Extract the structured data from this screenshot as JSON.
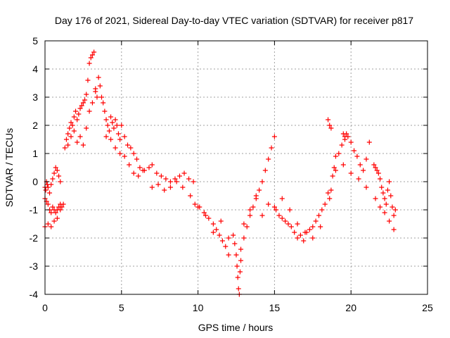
{
  "chart_data": {
    "type": "scatter",
    "title": "Day 176 of 2021, Sidereal Day-to-day VTEC variation (SDTVAR) for receiver p817",
    "xlabel": "GPS time / hours",
    "ylabel": "SDTVAR / TECUs",
    "xlim": [
      0,
      25
    ],
    "ylim": [
      -4,
      5
    ],
    "xticks": [
      0,
      5,
      10,
      15,
      20,
      25
    ],
    "yticks": [
      -4,
      -3,
      -2,
      -1,
      0,
      1,
      2,
      3,
      4,
      5
    ],
    "xtick_labels": [
      "0",
      "5",
      "10",
      "15",
      "20",
      "25"
    ],
    "ytick_labels": [
      "-4",
      "-3",
      "-2",
      "-1",
      "0",
      "1",
      "2",
      "3",
      "4",
      "5"
    ],
    "grid": true,
    "marker": "+",
    "color": "#ff0000",
    "series": [
      {
        "name": "p817",
        "x": [
          0.0,
          0.05,
          0.1,
          0.15,
          0.2,
          0.3,
          0.4,
          0.5,
          0.6,
          0.7,
          0.8,
          0.9,
          1.0,
          0.0,
          0.1,
          0.2,
          0.3,
          0.4,
          0.5,
          0.6,
          0.7,
          0.8,
          0.9,
          1.0,
          1.1,
          0.0,
          0.2,
          0.4,
          0.6,
          0.8,
          1.0,
          1.2,
          1.3,
          1.4,
          1.5,
          1.6,
          1.7,
          1.8,
          1.9,
          2.0,
          2.1,
          2.2,
          2.3,
          2.4,
          2.5,
          2.6,
          2.7,
          2.8,
          2.9,
          3.0,
          3.1,
          3.2,
          3.3,
          3.4,
          1.5,
          1.7,
          1.9,
          2.1,
          2.3,
          2.5,
          2.7,
          2.9,
          3.1,
          3.3,
          3.5,
          3.6,
          3.7,
          3.8,
          3.9,
          4.0,
          4.1,
          4.2,
          4.3,
          4.4,
          4.5,
          4.6,
          4.7,
          4.8,
          4.9,
          5.0,
          5.2,
          5.4,
          5.6,
          5.8,
          6.0,
          6.2,
          6.4,
          4.0,
          4.3,
          4.6,
          4.9,
          5.2,
          5.5,
          5.8,
          6.1,
          6.5,
          6.8,
          7.0,
          7.3,
          7.6,
          7.9,
          8.2,
          8.5,
          8.8,
          9.1,
          9.4,
          9.7,
          7.0,
          7.4,
          7.8,
          8.2,
          8.6,
          9.0,
          9.5,
          9.8,
          10.1,
          10.4,
          10.7,
          11.0,
          11.2,
          11.4,
          11.6,
          11.8,
          12.0,
          10.0,
          10.5,
          11.0,
          11.5,
          12.0,
          12.3,
          12.4,
          12.5,
          12.55,
          12.6,
          12.65,
          12.7,
          12.75,
          12.8,
          12.8,
          13.0,
          13.2,
          13.4,
          13.6,
          13.8,
          14.0,
          14.2,
          14.4,
          14.6,
          14.8,
          15.0,
          13.0,
          13.4,
          13.8,
          14.2,
          14.6,
          15.0,
          15.1,
          15.3,
          15.5,
          15.7,
          15.9,
          16.1,
          16.3,
          16.5,
          16.7,
          16.9,
          17.1,
          17.3,
          17.5,
          17.7,
          17.9,
          18.1,
          18.3,
          18.5,
          15.5,
          16.0,
          16.5,
          17.0,
          17.5,
          18.0,
          18.6,
          18.7,
          18.8,
          18.9,
          19.0,
          19.2,
          19.4,
          19.6,
          19.8,
          20.0,
          20.2,
          20.4,
          20.6,
          20.8,
          21.0,
          21.2,
          18.5,
          18.6,
          18.7,
          19.5,
          19.6,
          19.7,
          19.0,
          19.5,
          20.0,
          20.5,
          21.0,
          21.5,
          21.6,
          21.7,
          21.8,
          21.9,
          22.0,
          22.1,
          22.2,
          22.3,
          22.4,
          22.5,
          22.6,
          22.7,
          22.8,
          22.9,
          21.6,
          21.9,
          22.2,
          22.5,
          22.8
        ],
        "y": [
          -0.2,
          -0.3,
          0.0,
          -0.1,
          -0.2,
          -0.4,
          -0.1,
          0.1,
          0.3,
          0.5,
          0.4,
          0.2,
          0.0,
          -0.6,
          -0.7,
          -0.8,
          -1.0,
          -1.1,
          -0.9,
          -1.0,
          -1.1,
          -1.0,
          -0.9,
          -0.8,
          -0.9,
          -1.6,
          -1.5,
          -1.6,
          -1.4,
          -1.3,
          -1.0,
          -0.8,
          1.2,
          1.5,
          1.7,
          1.9,
          2.1,
          2.0,
          2.3,
          2.5,
          2.2,
          2.4,
          2.6,
          2.7,
          2.8,
          2.9,
          3.1,
          3.6,
          4.2,
          4.4,
          4.5,
          4.6,
          3.3,
          3.0,
          1.3,
          1.6,
          1.8,
          1.4,
          1.6,
          1.3,
          1.9,
          2.5,
          2.8,
          3.2,
          3.7,
          3.4,
          3.0,
          2.8,
          2.5,
          2.2,
          2.0,
          1.8,
          2.3,
          2.1,
          1.9,
          2.2,
          2.0,
          1.7,
          1.5,
          2.0,
          1.6,
          1.3,
          1.2,
          1.0,
          0.8,
          0.5,
          0.4,
          1.6,
          1.5,
          1.2,
          1.0,
          0.9,
          0.6,
          0.3,
          0.2,
          0.4,
          0.5,
          0.6,
          0.3,
          0.2,
          0.1,
          0.0,
          0.1,
          0.2,
          0.3,
          0.1,
          0.0,
          -0.2,
          -0.1,
          -0.3,
          -0.2,
          0.0,
          -0.2,
          -0.5,
          -0.8,
          -0.9,
          -1.1,
          -1.3,
          -1.5,
          -1.7,
          -1.9,
          -2.1,
          -2.3,
          -2.6,
          -0.9,
          -1.2,
          -1.8,
          -1.4,
          -2.0,
          -1.9,
          -2.2,
          -2.6,
          -3.0,
          -3.4,
          -3.8,
          -4.0,
          -3.2,
          -2.8,
          -2.4,
          -2.0,
          -1.6,
          -1.2,
          -0.9,
          -0.6,
          -0.3,
          0.0,
          0.4,
          0.8,
          1.2,
          1.6,
          -1.5,
          -1.0,
          -0.5,
          -1.2,
          -0.8,
          -0.9,
          -1.0,
          -1.2,
          -1.3,
          -1.4,
          -1.5,
          -1.6,
          -1.8,
          -2.0,
          -1.9,
          -2.1,
          -1.8,
          -1.7,
          -1.6,
          -1.4,
          -1.2,
          -1.0,
          -0.8,
          -0.4,
          -0.6,
          -1.0,
          -1.5,
          -1.8,
          -2.0,
          -1.6,
          -0.6,
          -0.3,
          0.2,
          0.5,
          0.9,
          1.0,
          1.3,
          1.5,
          1.6,
          1.4,
          1.1,
          0.9,
          0.6,
          0.4,
          0.8,
          1.4,
          2.2,
          2.0,
          1.9,
          1.7,
          1.6,
          1.7,
          0.4,
          0.6,
          0.3,
          0.1,
          -0.2,
          0.6,
          0.5,
          0.4,
          0.3,
          0.1,
          -0.2,
          -0.4,
          -0.6,
          -0.8,
          -0.3,
          0.0,
          -0.5,
          -0.9,
          -1.2,
          -1.0,
          -0.6,
          -0.9,
          -1.1,
          -1.4,
          -1.7
        ]
      }
    ]
  }
}
